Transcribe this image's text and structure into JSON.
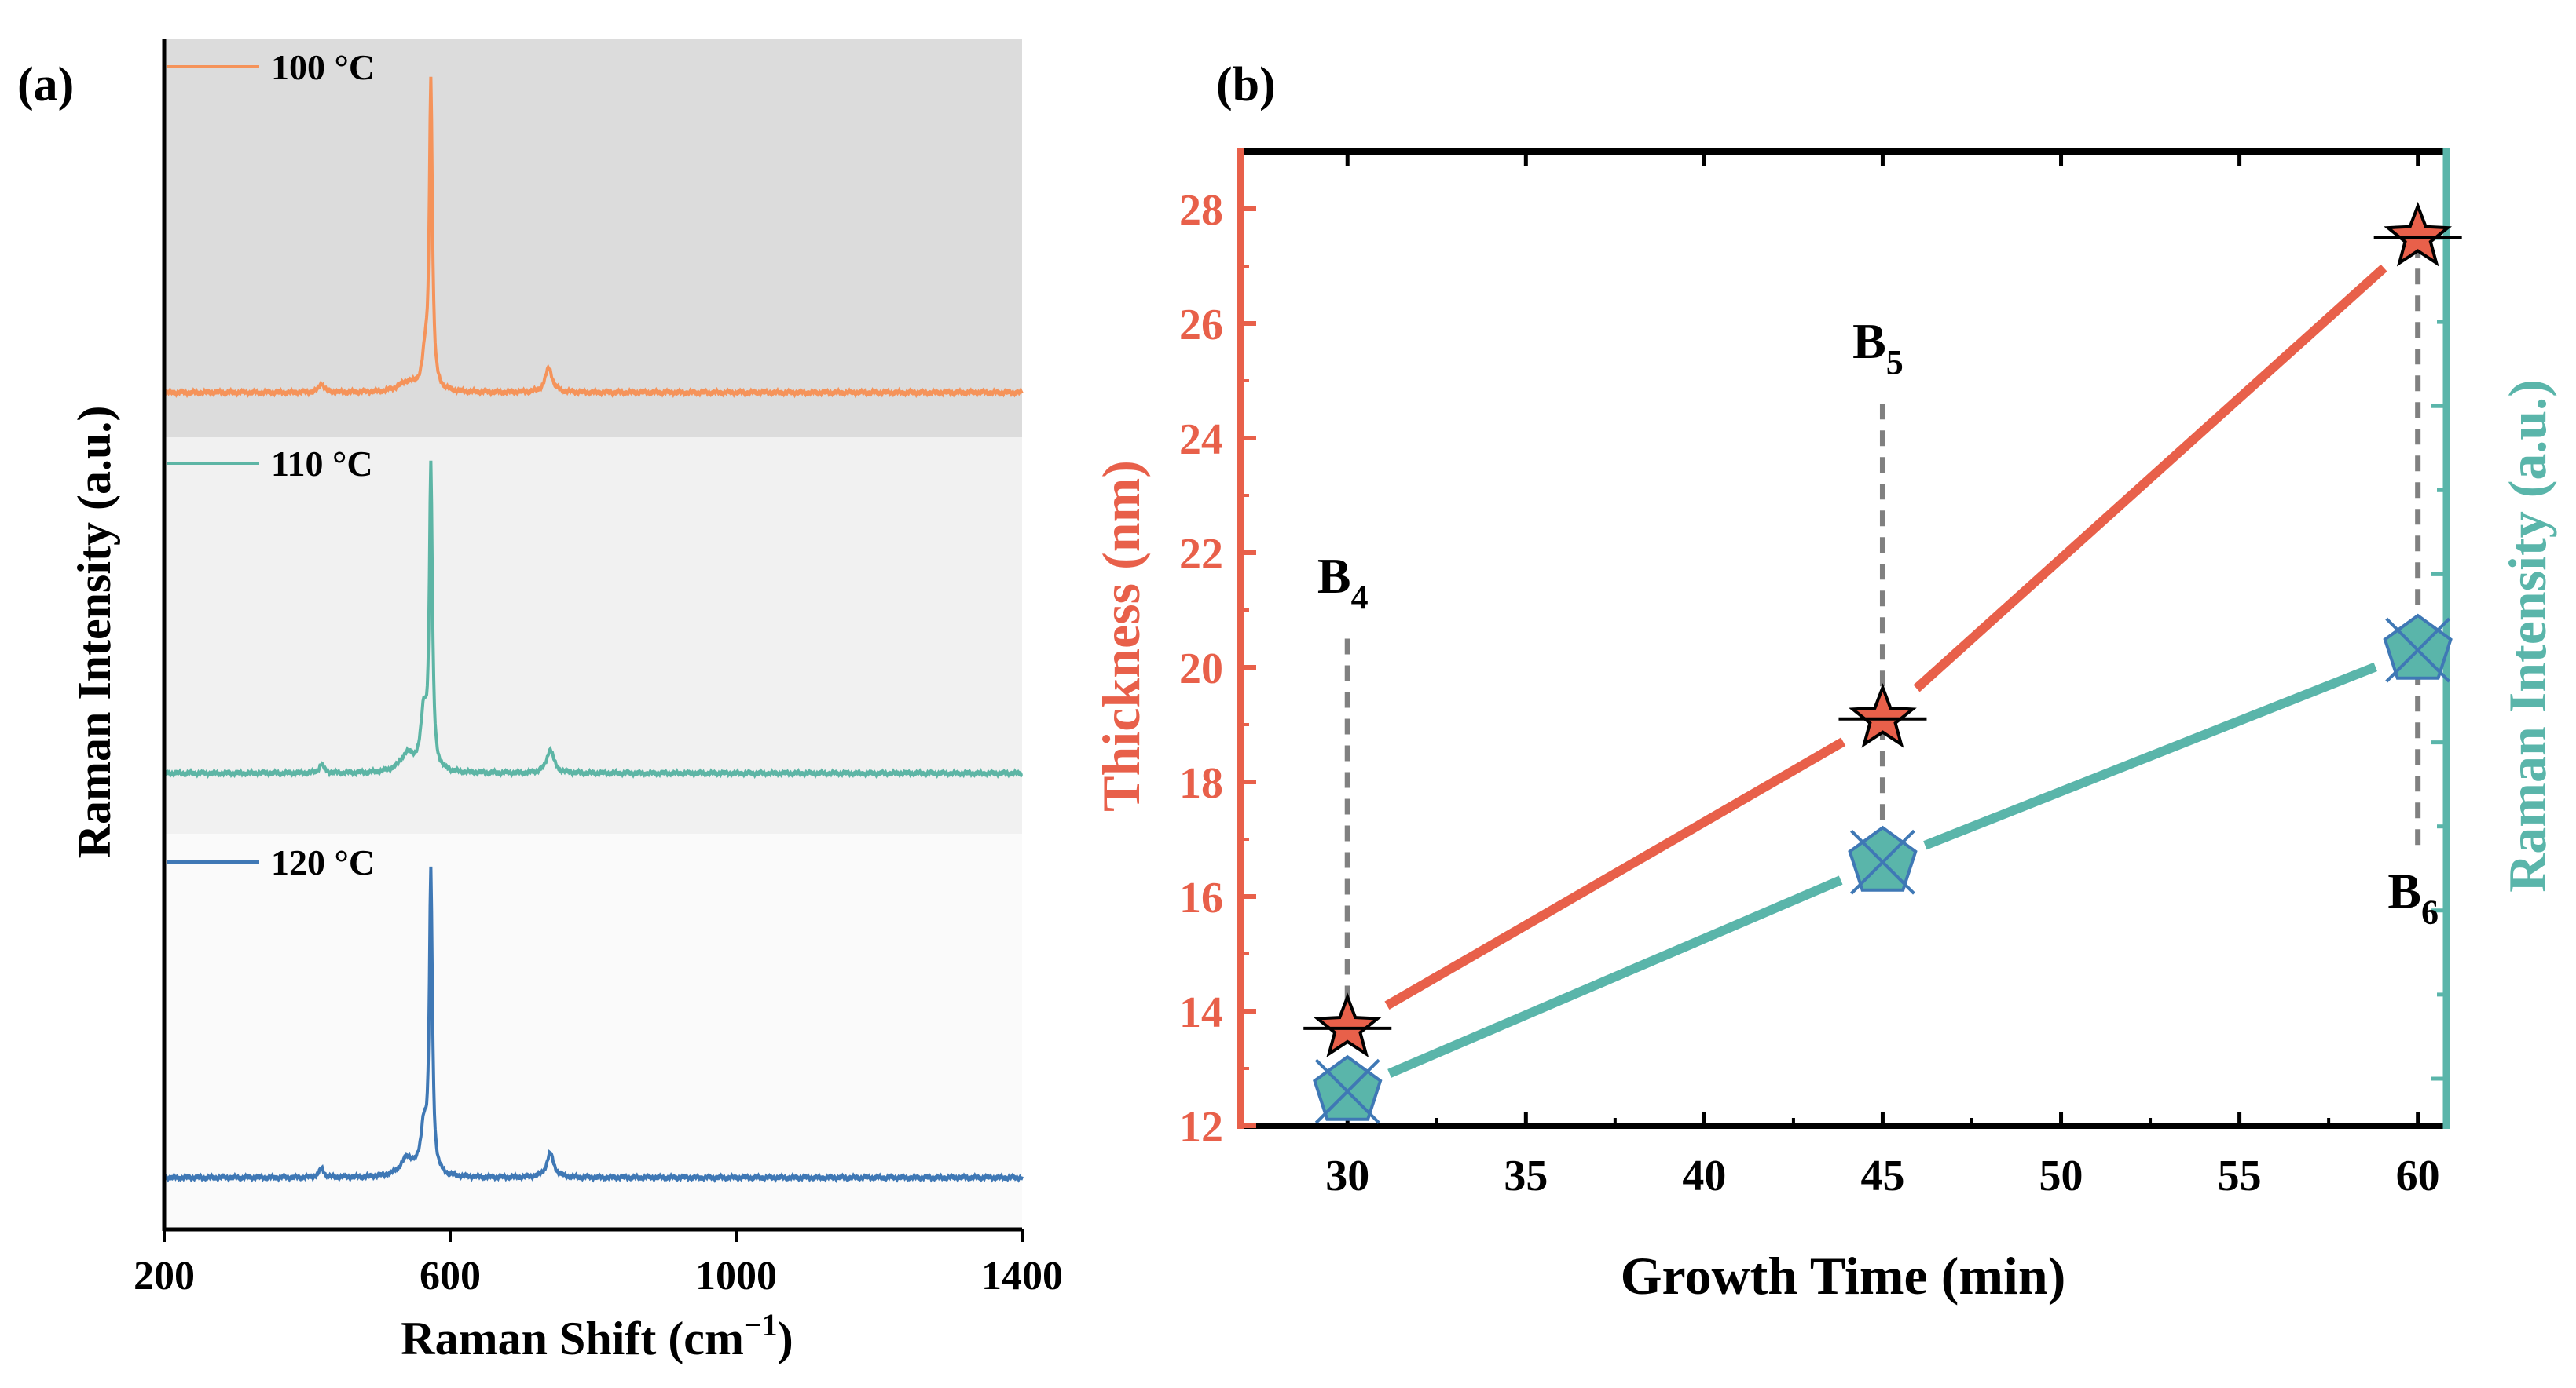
{
  "chart_data": [
    {
      "panel": "(a)",
      "type": "line",
      "xlabel": "Raman Shift (cm",
      "xlabel_sup": "−1",
      "xlabel_close": ")",
      "ylabel": "Raman Intensity (a.u.)",
      "xlim": [
        200,
        1400
      ],
      "xticks": [
        "200",
        "600",
        "1000",
        "1400"
      ],
      "series": [
        {
          "name": "100 °C",
          "color": "#F5935A",
          "band": "#DCDCDC",
          "peaks": [
            [
              420,
              0.03,
              4
            ],
            [
              540,
              0.03,
              15
            ],
            [
              565,
              0.1,
              5
            ],
            [
              573,
              1.0,
              2.5
            ],
            [
              738,
              0.08,
              6
            ]
          ]
        },
        {
          "name": "110 °C",
          "color": "#5DB5A5",
          "band": "#F1F1F1",
          "peaks": [
            [
              420,
              0.03,
              4
            ],
            [
              540,
              0.06,
              12
            ],
            [
              563,
              0.18,
              5
            ],
            [
              573,
              1.0,
              2.5
            ],
            [
              740,
              0.08,
              6
            ]
          ]
        },
        {
          "name": "120 °C",
          "color": "#3F78B5",
          "band": "#FAFAFA",
          "peaks": [
            [
              420,
              0.03,
              4
            ],
            [
              540,
              0.06,
              12
            ],
            [
              563,
              0.15,
              5
            ],
            [
              573,
              1.0,
              2.5
            ],
            [
              740,
              0.08,
              6
            ]
          ]
        }
      ]
    },
    {
      "panel": "(b)",
      "type": "line",
      "xlabel": "Growth Time (min)",
      "ylabel": "Thickness (nm)",
      "y2label": "Raman Intensity (a.u.)",
      "xlim": [
        27,
        60.8
      ],
      "xticks": [
        30,
        35,
        40,
        45,
        50,
        55,
        60
      ],
      "ylim": [
        12,
        29
      ],
      "yticks": [
        12,
        14,
        16,
        18,
        20,
        22,
        24,
        26,
        28
      ],
      "y2_minor_ticks": 10,
      "x": [
        30,
        45,
        60
      ],
      "series": [
        {
          "name": "Thickness",
          "axis": "left",
          "color": "#E8604A",
          "marker": "star",
          "values": [
            13.7,
            19.1,
            27.5
          ]
        },
        {
          "name": "Raman Intensity",
          "axis": "right",
          "color": "#5AB5AA",
          "marker": "pentagon",
          "values": [
            12.6,
            16.6,
            20.3
          ]
        }
      ],
      "annotations": [
        {
          "label": "B",
          "sub": "4",
          "x": 30,
          "label_y": 21.3,
          "line_from": 20.5,
          "line_to": 13.9
        },
        {
          "label": "B",
          "sub": "5",
          "x": 45,
          "label_y": 25.4,
          "line_from": 24.6,
          "line_to": 16.8
        },
        {
          "label": "B",
          "sub": "6",
          "x": 60,
          "label_y": 15.8,
          "line_from": 16.9,
          "line_to": 27.3
        }
      ]
    }
  ]
}
